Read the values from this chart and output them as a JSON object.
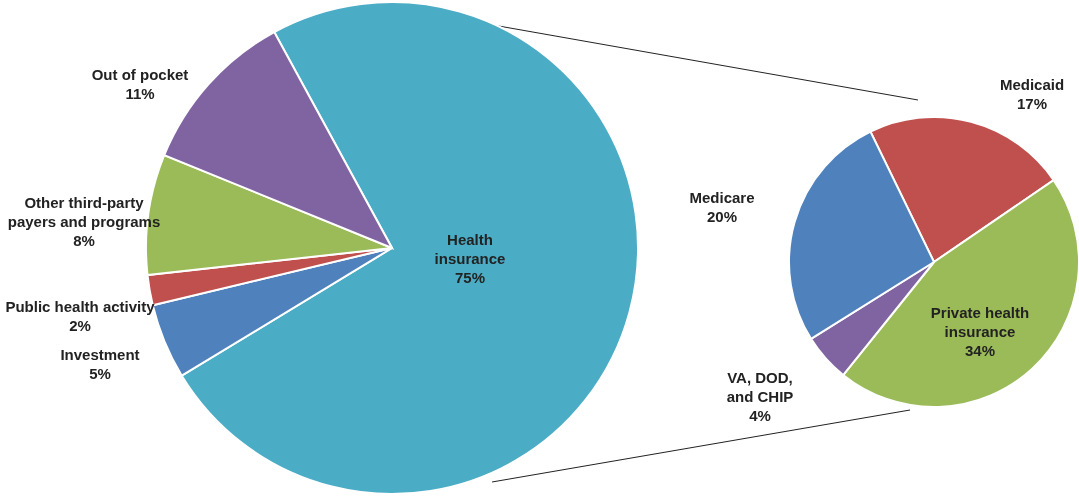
{
  "chart_data": [
    {
      "type": "pie",
      "categories": [
        "Health insurance",
        "Investment",
        "Public health activity",
        "Other third-party payers and programs",
        "Out of pocket"
      ],
      "values": [
        75,
        5,
        2,
        8,
        11
      ],
      "value_labels": [
        "75%",
        "5%",
        "2%",
        "8%",
        "11%"
      ],
      "colors": [
        "#4bacc6",
        "#4f81bd",
        "#c0504d",
        "#9bbb59",
        "#8064a2"
      ]
    },
    {
      "type": "pie",
      "categories": [
        "Medicaid",
        "Private health insurance",
        "VA, DOD, and CHIP",
        "Medicare"
      ],
      "values": [
        17,
        34,
        4,
        20
      ],
      "value_labels": [
        "17%",
        "34%",
        "4%",
        "20%"
      ],
      "colors": [
        "#c0504d",
        "#9bbb59",
        "#8064a2",
        "#4f81bd"
      ]
    }
  ]
}
